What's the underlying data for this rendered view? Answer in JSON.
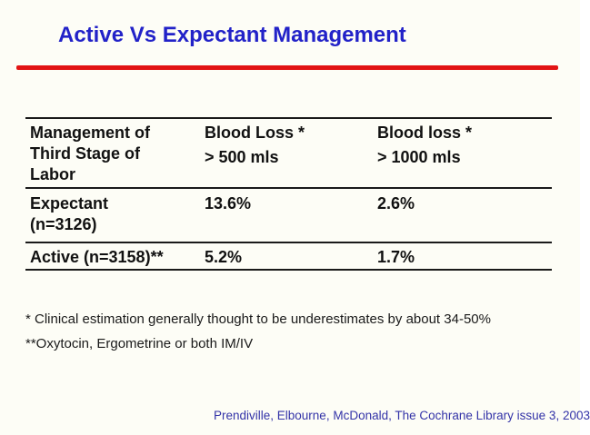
{
  "slide": {
    "title": "Active Vs Expectant Management"
  },
  "table": {
    "header": {
      "management": [
        "Management of",
        "Third Stage of",
        "Labor"
      ],
      "blood_loss_500": [
        "Blood Loss *",
        "> 500 mls"
      ],
      "blood_loss_1000": [
        "Blood loss *",
        "> 1000 mls"
      ]
    },
    "rows": [
      {
        "label": [
          "Expectant",
          "(n=3126)"
        ],
        "loss_500": "13.6%",
        "loss_1000": "2.6%"
      },
      {
        "label": [
          "Active (n=3158)**"
        ],
        "loss_500": "5.2%",
        "loss_1000": "1.7%"
      }
    ]
  },
  "footnotes": [
    "* Clinical estimation generally thought to be underestimates by about 34-50%",
    "**Oxytocin, Ergometrine or both IM/IV"
  ],
  "citation": "Prendiville, Elbourne, McDonald,  The Cochrane Library issue 3, 2003",
  "colors": {
    "title_blue": "#2222c8",
    "rule_red": "#e21414",
    "citation_blue": "#3434a8",
    "table_line": "#1a1a1a",
    "background": "#fdfdf6"
  },
  "chart_data": {
    "type": "table",
    "title": "Active Vs Expectant Management",
    "columns": [
      "Management of Third Stage of Labor",
      "Blood Loss * > 500 mls",
      "Blood loss * > 1000 mls"
    ],
    "rows": [
      [
        "Expectant (n=3126)",
        "13.6%",
        "2.6%"
      ],
      [
        "Active (n=3158)**",
        "5.2%",
        "1.7%"
      ]
    ]
  }
}
